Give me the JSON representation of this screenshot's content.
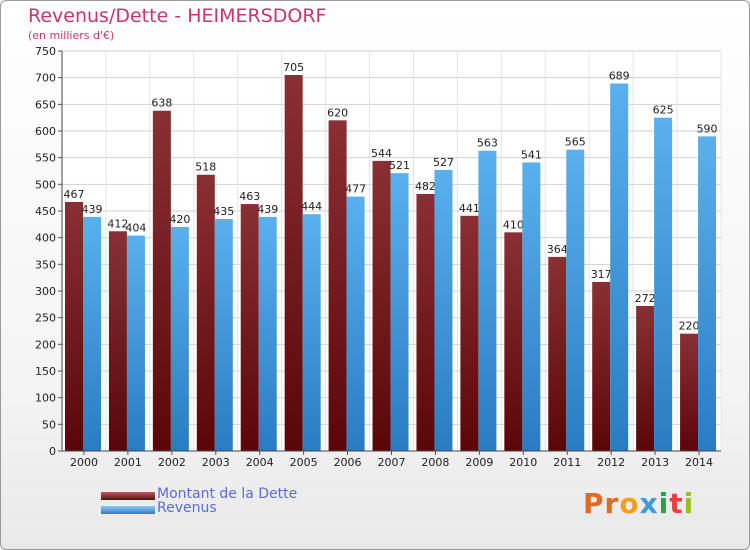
{
  "chart_data": {
    "type": "bar",
    "title": "Revenus/Dette - HEIMERSDORF",
    "subtitle": "(en milliers d'€)",
    "categories": [
      "2000",
      "2001",
      "2002",
      "2003",
      "2004",
      "2005",
      "2006",
      "2007",
      "2008",
      "2009",
      "2010",
      "2011",
      "2012",
      "2013",
      "2014"
    ],
    "series": [
      {
        "name": "Montant de la Dette",
        "color": "#7a1c1e",
        "values": [
          467,
          412,
          638,
          518,
          463,
          705,
          620,
          544,
          482,
          441,
          410,
          364,
          317,
          272,
          220
        ]
      },
      {
        "name": "Revenus",
        "color": "#3a9be0",
        "values": [
          439,
          404,
          420,
          435,
          439,
          444,
          477,
          521,
          527,
          563,
          541,
          565,
          689,
          625,
          590
        ]
      }
    ],
    "ylim": [
      0,
      750
    ],
    "yticks": [
      0,
      50,
      100,
      150,
      200,
      250,
      300,
      350,
      400,
      450,
      500,
      550,
      600,
      650,
      700,
      750
    ],
    "grid": true,
    "legend_position": "bottom-left"
  },
  "branding": {
    "logo_text": "Proxiti"
  }
}
